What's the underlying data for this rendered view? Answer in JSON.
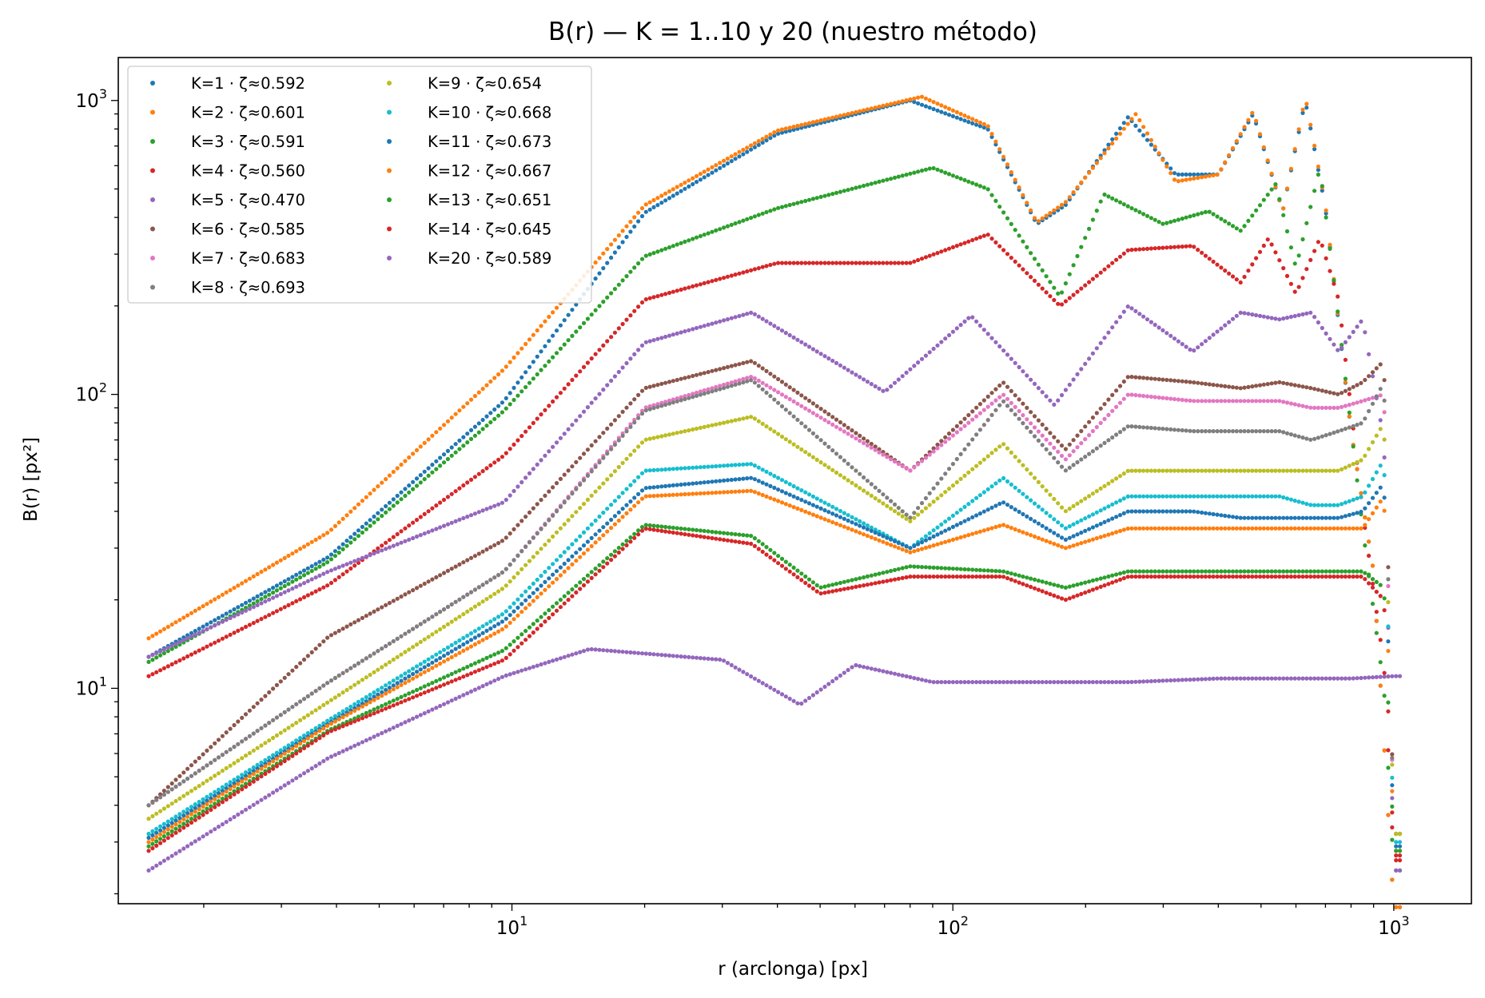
{
  "chart_data": {
    "type": "scatter",
    "title": "B(r) — K = 1..10 y 20 (nuestro método)",
    "xlabel": "r (arclonga) [px]",
    "ylabel": "B(r) [px²]",
    "xscale": "log",
    "yscale": "log",
    "xlim": [
      1.28,
      1500
    ],
    "ylim": [
      1.85,
      1400
    ],
    "xticks": [
      {
        "value": 10,
        "base": "10",
        "exp": "1"
      },
      {
        "value": 100,
        "base": "10",
        "exp": "2"
      },
      {
        "value": 1000,
        "base": "10",
        "exp": "3"
      }
    ],
    "yticks": [
      {
        "value": 10,
        "base": "10",
        "exp": "1"
      },
      {
        "value": 100,
        "base": "10",
        "exp": "2"
      },
      {
        "value": 1000,
        "base": "10",
        "exp": "3"
      }
    ],
    "grid": false,
    "legend_position": "upper-left",
    "legend_columns": 2,
    "x_sampling": {
      "start": 1.5,
      "end": 1050
    },
    "series": [
      {
        "name": "K=1 · ζ≈0.592",
        "color": "#1f77b4",
        "points": [
          [
            1.5,
            12.8
          ],
          [
            3.84,
            28
          ],
          [
            9.6,
            95
          ],
          [
            20,
            415
          ],
          [
            40,
            770
          ],
          [
            80,
            1000
          ],
          [
            120,
            800
          ],
          [
            155,
            380
          ],
          [
            180,
            440
          ],
          [
            250,
            880
          ],
          [
            320,
            560
          ],
          [
            400,
            560
          ],
          [
            480,
            900
          ],
          [
            560,
            420
          ],
          [
            630,
            1000
          ],
          [
            700,
            430
          ],
          [
            800,
            75
          ],
          [
            900,
            25
          ],
          [
            1000,
            1.8
          ]
        ]
      },
      {
        "name": "K=2 · ζ≈0.601",
        "color": "#ff7f0e",
        "points": [
          [
            1.5,
            14.8
          ],
          [
            3.84,
            34
          ],
          [
            9.6,
            122
          ],
          [
            20,
            440
          ],
          [
            40,
            790
          ],
          [
            85,
            1030
          ],
          [
            120,
            820
          ],
          [
            155,
            385
          ],
          [
            180,
            450
          ],
          [
            260,
            900
          ],
          [
            320,
            530
          ],
          [
            400,
            560
          ],
          [
            480,
            920
          ],
          [
            560,
            420
          ],
          [
            630,
            1030
          ],
          [
            700,
            440
          ],
          [
            800,
            75
          ],
          [
            900,
            25
          ],
          [
            1000,
            1.8
          ]
        ]
      },
      {
        "name": "K=3 · ζ≈0.591",
        "color": "#2ca02c",
        "points": [
          [
            1.5,
            12.3
          ],
          [
            3.84,
            27
          ],
          [
            9.6,
            88
          ],
          [
            20,
            295
          ],
          [
            40,
            430
          ],
          [
            90,
            590
          ],
          [
            120,
            500
          ],
          [
            175,
            215
          ],
          [
            220,
            480
          ],
          [
            300,
            380
          ],
          [
            380,
            420
          ],
          [
            450,
            360
          ],
          [
            540,
            520
          ],
          [
            600,
            270
          ],
          [
            680,
            590
          ],
          [
            750,
            180
          ],
          [
            850,
            35
          ],
          [
            950,
            10
          ],
          [
            1000,
            2.4
          ]
        ]
      },
      {
        "name": "K=4 · ζ≈0.560",
        "color": "#d62728",
        "points": [
          [
            1.5,
            11
          ],
          [
            3.84,
            22.5
          ],
          [
            9.6,
            62
          ],
          [
            20,
            210
          ],
          [
            40,
            280
          ],
          [
            80,
            280
          ],
          [
            120,
            350
          ],
          [
            175,
            200
          ],
          [
            250,
            310
          ],
          [
            350,
            320
          ],
          [
            450,
            240
          ],
          [
            520,
            340
          ],
          [
            600,
            220
          ],
          [
            680,
            340
          ],
          [
            750,
            210
          ],
          [
            850,
            40
          ],
          [
            950,
            12
          ],
          [
            1000,
            2.6
          ]
        ]
      },
      {
        "name": "K=5 · ζ≈0.470",
        "color": "#9467bd",
        "points": [
          [
            1.5,
            12.8
          ],
          [
            3.84,
            25
          ],
          [
            9.6,
            43
          ],
          [
            20,
            150
          ],
          [
            35,
            190
          ],
          [
            70,
            102
          ],
          [
            110,
            185
          ],
          [
            170,
            92
          ],
          [
            250,
            200
          ],
          [
            350,
            140
          ],
          [
            450,
            190
          ],
          [
            550,
            180
          ],
          [
            650,
            190
          ],
          [
            750,
            140
          ],
          [
            850,
            180
          ],
          [
            950,
            70
          ],
          [
            1000,
            2.4
          ]
        ]
      },
      {
        "name": "K=6 · ζ≈0.585",
        "color": "#8c564b",
        "points": [
          [
            1.5,
            4
          ],
          [
            3.84,
            15
          ],
          [
            9.6,
            32
          ],
          [
            20,
            105
          ],
          [
            35,
            130
          ],
          [
            80,
            55
          ],
          [
            130,
            110
          ],
          [
            180,
            65
          ],
          [
            250,
            115
          ],
          [
            350,
            110
          ],
          [
            450,
            105
          ],
          [
            550,
            110
          ],
          [
            650,
            105
          ],
          [
            750,
            100
          ],
          [
            850,
            110
          ],
          [
            950,
            130
          ],
          [
            1000,
            3.2
          ]
        ]
      },
      {
        "name": "K=7 · ζ≈0.683",
        "color": "#e377c2",
        "points": [
          [
            1.5,
            4
          ],
          [
            3.84,
            10.5
          ],
          [
            9.6,
            25
          ],
          [
            20,
            90
          ],
          [
            35,
            115
          ],
          [
            80,
            55
          ],
          [
            130,
            100
          ],
          [
            180,
            60
          ],
          [
            250,
            100
          ],
          [
            350,
            95
          ],
          [
            450,
            95
          ],
          [
            550,
            95
          ],
          [
            650,
            90
          ],
          [
            750,
            90
          ],
          [
            850,
            95
          ],
          [
            950,
            100
          ],
          [
            1000,
            3.2
          ]
        ]
      },
      {
        "name": "K=8 · ζ≈0.693",
        "color": "#7f7f7f",
        "points": [
          [
            1.5,
            4
          ],
          [
            3.84,
            10.5
          ],
          [
            9.6,
            25
          ],
          [
            20,
            88
          ],
          [
            35,
            112
          ],
          [
            80,
            38
          ],
          [
            130,
            95
          ],
          [
            180,
            55
          ],
          [
            250,
            78
          ],
          [
            350,
            75
          ],
          [
            450,
            75
          ],
          [
            550,
            75
          ],
          [
            650,
            70
          ],
          [
            750,
            75
          ],
          [
            850,
            80
          ],
          [
            950,
            110
          ],
          [
            1000,
            3.2
          ]
        ]
      },
      {
        "name": "K=9 · ζ≈0.654",
        "color": "#bcbd22",
        "points": [
          [
            1.5,
            3.6
          ],
          [
            3.84,
            9
          ],
          [
            9.6,
            22
          ],
          [
            20,
            70
          ],
          [
            35,
            84
          ],
          [
            80,
            37
          ],
          [
            130,
            68
          ],
          [
            180,
            40
          ],
          [
            250,
            55
          ],
          [
            350,
            55
          ],
          [
            450,
            55
          ],
          [
            550,
            55
          ],
          [
            650,
            55
          ],
          [
            750,
            55
          ],
          [
            850,
            60
          ],
          [
            950,
            80
          ],
          [
            1000,
            3.2
          ]
        ]
      },
      {
        "name": "K=10 · ζ≈0.668",
        "color": "#17becf",
        "points": [
          [
            1.5,
            3.2
          ],
          [
            3.84,
            7.8
          ],
          [
            9.6,
            18
          ],
          [
            20,
            55
          ],
          [
            35,
            58
          ],
          [
            80,
            30
          ],
          [
            130,
            52
          ],
          [
            180,
            35
          ],
          [
            250,
            45
          ],
          [
            350,
            45
          ],
          [
            450,
            45
          ],
          [
            550,
            45
          ],
          [
            650,
            42
          ],
          [
            750,
            42
          ],
          [
            850,
            45
          ],
          [
            950,
            60
          ],
          [
            1000,
            3.0
          ]
        ]
      },
      {
        "name": "K=11 · ζ≈0.673",
        "color": "#1f77b4",
        "points": [
          [
            1.5,
            3.1
          ],
          [
            3.84,
            7.6
          ],
          [
            9.6,
            17
          ],
          [
            20,
            48
          ],
          [
            35,
            52
          ],
          [
            80,
            30
          ],
          [
            130,
            43
          ],
          [
            180,
            32
          ],
          [
            250,
            40
          ],
          [
            350,
            40
          ],
          [
            450,
            38
          ],
          [
            550,
            38
          ],
          [
            650,
            38
          ],
          [
            750,
            38
          ],
          [
            850,
            40
          ],
          [
            950,
            50
          ],
          [
            1000,
            2.9
          ]
        ]
      },
      {
        "name": "K=12 · ζ≈0.667",
        "color": "#ff7f0e",
        "points": [
          [
            1.5,
            3.0
          ],
          [
            3.84,
            7.5
          ],
          [
            9.6,
            16
          ],
          [
            20,
            45
          ],
          [
            35,
            47
          ],
          [
            80,
            29
          ],
          [
            130,
            36
          ],
          [
            180,
            30
          ],
          [
            250,
            35
          ],
          [
            350,
            35
          ],
          [
            450,
            35
          ],
          [
            550,
            35
          ],
          [
            650,
            35
          ],
          [
            750,
            35
          ],
          [
            850,
            35
          ],
          [
            950,
            45
          ],
          [
            1000,
            2.8
          ]
        ]
      },
      {
        "name": "K=13 · ζ≈0.651",
        "color": "#2ca02c",
        "points": [
          [
            1.5,
            2.9
          ],
          [
            3.84,
            7.2
          ],
          [
            9.6,
            13.5
          ],
          [
            20,
            36
          ],
          [
            35,
            33
          ],
          [
            50,
            22
          ],
          [
            80,
            26
          ],
          [
            130,
            25
          ],
          [
            180,
            22
          ],
          [
            250,
            25
          ],
          [
            350,
            25
          ],
          [
            450,
            25
          ],
          [
            550,
            25
          ],
          [
            650,
            25
          ],
          [
            750,
            25
          ],
          [
            850,
            25
          ],
          [
            950,
            22
          ],
          [
            1000,
            2.8
          ]
        ]
      },
      {
        "name": "K=14 · ζ≈0.645",
        "color": "#d62728",
        "points": [
          [
            1.5,
            2.8
          ],
          [
            3.84,
            7.1
          ],
          [
            9.6,
            12.5
          ],
          [
            20,
            35
          ],
          [
            35,
            31
          ],
          [
            50,
            21
          ],
          [
            80,
            24
          ],
          [
            130,
            24
          ],
          [
            180,
            20
          ],
          [
            250,
            24
          ],
          [
            350,
            24
          ],
          [
            450,
            24
          ],
          [
            550,
            24
          ],
          [
            650,
            24
          ],
          [
            750,
            24
          ],
          [
            850,
            24
          ],
          [
            950,
            20
          ],
          [
            1000,
            2.7
          ]
        ]
      },
      {
        "name": "K=20 · ζ≈0.589",
        "color": "#9467bd",
        "points": [
          [
            1.5,
            2.4
          ],
          [
            3.84,
            5.8
          ],
          [
            9.6,
            11
          ],
          [
            15,
            13.6
          ],
          [
            30,
            12.5
          ],
          [
            45,
            8.8
          ],
          [
            60,
            12
          ],
          [
            90,
            10.5
          ],
          [
            150,
            10.5
          ],
          [
            250,
            10.5
          ],
          [
            400,
            10.8
          ],
          [
            600,
            10.8
          ],
          [
            800,
            10.8
          ],
          [
            1000,
            11
          ]
        ]
      }
    ]
  }
}
